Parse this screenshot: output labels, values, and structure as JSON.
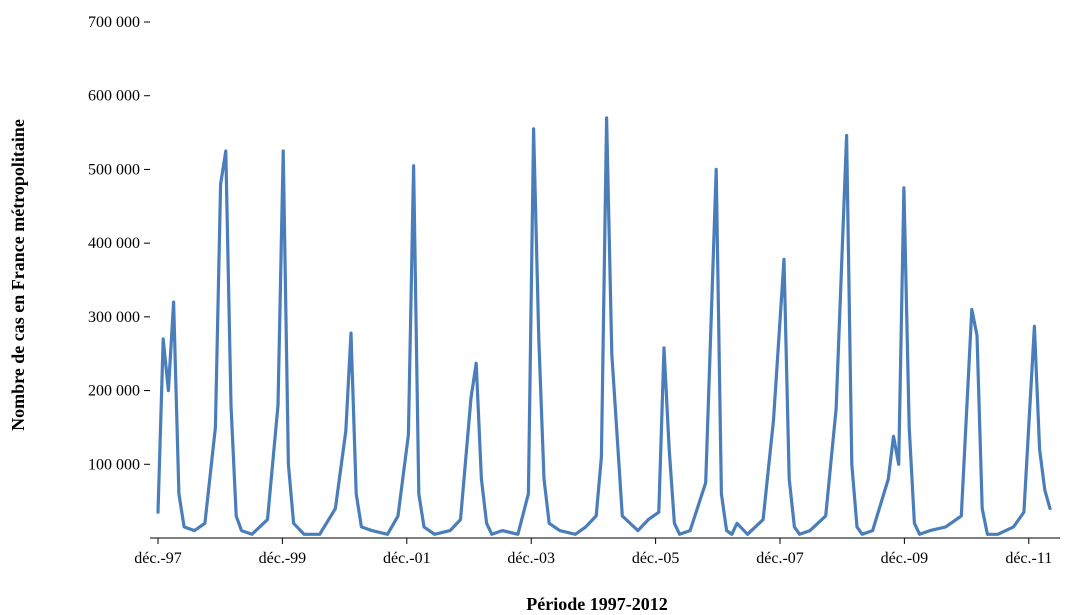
{
  "chart_data": {
    "type": "line",
    "xlabel": "Période 1997-2012",
    "ylabel": "Nombre de cas en France métropolitaine",
    "ylim": [
      0,
      700000
    ],
    "y_ticks": [
      {
        "value": 100000,
        "label": "100 000"
      },
      {
        "value": 200000,
        "label": "200 000"
      },
      {
        "value": 300000,
        "label": "300 000"
      },
      {
        "value": 400000,
        "label": "400 000"
      },
      {
        "value": 500000,
        "label": "500 000"
      },
      {
        "value": 600000,
        "label": "600 000"
      },
      {
        "value": 700000,
        "label": "700 000"
      }
    ],
    "x_ticks": [
      "déc.-97",
      "déc.-99",
      "déc.-01",
      "déc.-03",
      "déc.-05",
      "déc.-07",
      "déc.-09",
      "déc.-11"
    ],
    "xlim": [
      "1997-12",
      "2012-03"
    ],
    "grid": false,
    "line_color": "#4A7EBB",
    "series": [
      {
        "x": [
          "1997-12",
          "1998-01",
          "1998-02",
          "1998-03",
          "1998-04",
          "1998-05",
          "1998-07",
          "1998-09",
          "1998-11",
          "1998-12",
          "1999-01",
          "1999-02",
          "1999-03",
          "1999-04",
          "1999-06",
          "1999-09",
          "1999-11",
          "1999-12",
          "2000-01",
          "2000-02",
          "2000-04",
          "2000-07",
          "2000-10",
          "2000-12",
          "2001-01",
          "2001-02",
          "2001-03",
          "2001-05",
          "2001-08",
          "2001-10",
          "2001-12",
          "2002-01",
          "2002-02",
          "2002-03",
          "2002-05",
          "2002-08",
          "2002-10",
          "2002-12",
          "2003-01",
          "2003-02",
          "2003-03",
          "2003-04",
          "2003-06",
          "2003-09",
          "2003-11",
          "2003-12",
          "2004-01",
          "2004-02",
          "2004-03",
          "2004-05",
          "2004-08",
          "2004-10",
          "2004-12",
          "2005-01",
          "2005-02",
          "2005-03",
          "2005-05",
          "2005-08",
          "2005-10",
          "2005-12",
          "2006-01",
          "2006-02",
          "2006-03",
          "2006-04",
          "2006-06",
          "2006-09",
          "2006-11",
          "2006-12",
          "2007-01",
          "2007-02",
          "2007-03",
          "2007-05",
          "2007-08",
          "2007-10",
          "2007-12",
          "2008-01",
          "2008-02",
          "2008-03",
          "2008-05",
          "2008-08",
          "2008-10",
          "2008-12",
          "2009-01",
          "2009-02",
          "2009-03",
          "2009-05",
          "2009-08",
          "2009-09",
          "2009-10",
          "2009-11",
          "2009-12",
          "2010-01",
          "2010-02",
          "2010-04",
          "2010-07",
          "2010-10",
          "2010-12",
          "2011-01",
          "2011-02",
          "2011-03",
          "2011-05",
          "2011-08",
          "2011-10",
          "2011-12",
          "2012-01",
          "2012-02",
          "2012-03"
        ],
        "y": [
          35000,
          270000,
          200000,
          320000,
          60000,
          15000,
          10000,
          20000,
          150000,
          480000,
          525000,
          180000,
          30000,
          10000,
          5000,
          25000,
          180000,
          525000,
          100000,
          20000,
          5000,
          5000,
          40000,
          145000,
          278000,
          60000,
          15000,
          10000,
          5000,
          30000,
          140000,
          505000,
          60000,
          15000,
          5000,
          10000,
          25000,
          190000,
          237000,
          80000,
          20000,
          5000,
          10000,
          5000,
          60000,
          555000,
          270000,
          80000,
          20000,
          10000,
          5000,
          15000,
          30000,
          110000,
          570000,
          250000,
          30000,
          10000,
          25000,
          35000,
          258000,
          120000,
          20000,
          5000,
          10000,
          75000,
          500000,
          60000,
          10000,
          5000,
          20000,
          5000,
          25000,
          160000,
          378000,
          80000,
          15000,
          5000,
          10000,
          30000,
          175000,
          546000,
          100000,
          15000,
          5000,
          10000,
          80000,
          138000,
          100000,
          475000,
          150000,
          20000,
          5000,
          10000,
          15000,
          30000,
          310000,
          275000,
          40000,
          5000,
          5000,
          15000,
          35000,
          287000,
          120000,
          65000,
          40000
        ]
      }
    ]
  }
}
